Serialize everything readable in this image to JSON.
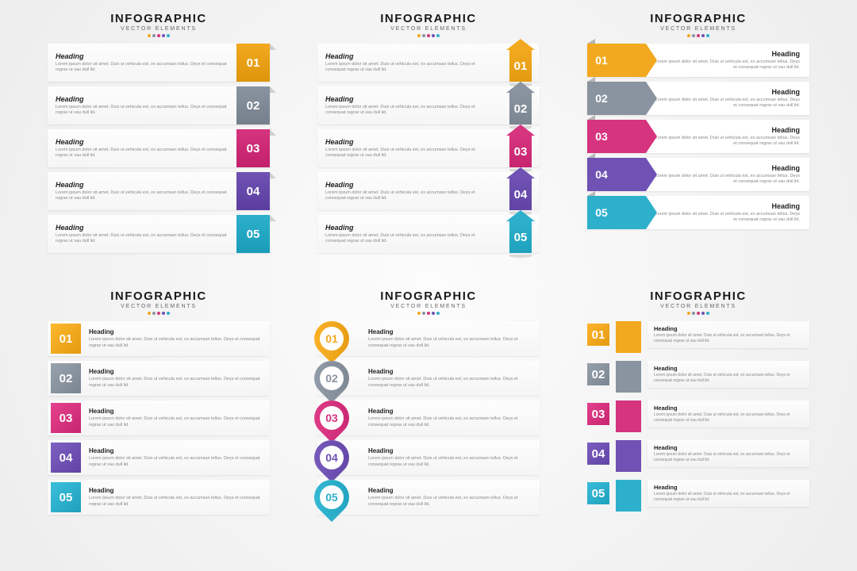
{
  "header": {
    "title": "INFOGRAPHIC",
    "subtitle": "VECTOR ELEMENTS"
  },
  "item": {
    "heading": "Heading",
    "body": "Lorem ipsum dolor sit amet. Duis ut vehicula est, ex accumsan tellus. Deys et consequat regrav ut vau dull lid."
  },
  "colors": {
    "c1": "#f2a91f",
    "c2": "#8a94a0",
    "c3": "#d6347f",
    "c4": "#6f52b3",
    "c5": "#2db0cc"
  },
  "numbers": [
    "01",
    "02",
    "03",
    "04",
    "05"
  ],
  "panels": [
    {
      "id": "A",
      "style": "sA"
    },
    {
      "id": "B",
      "style": "sB"
    },
    {
      "id": "C",
      "style": "sC"
    },
    {
      "id": "D",
      "style": "sD"
    },
    {
      "id": "E",
      "style": "sE"
    },
    {
      "id": "F",
      "style": "sF"
    }
  ]
}
